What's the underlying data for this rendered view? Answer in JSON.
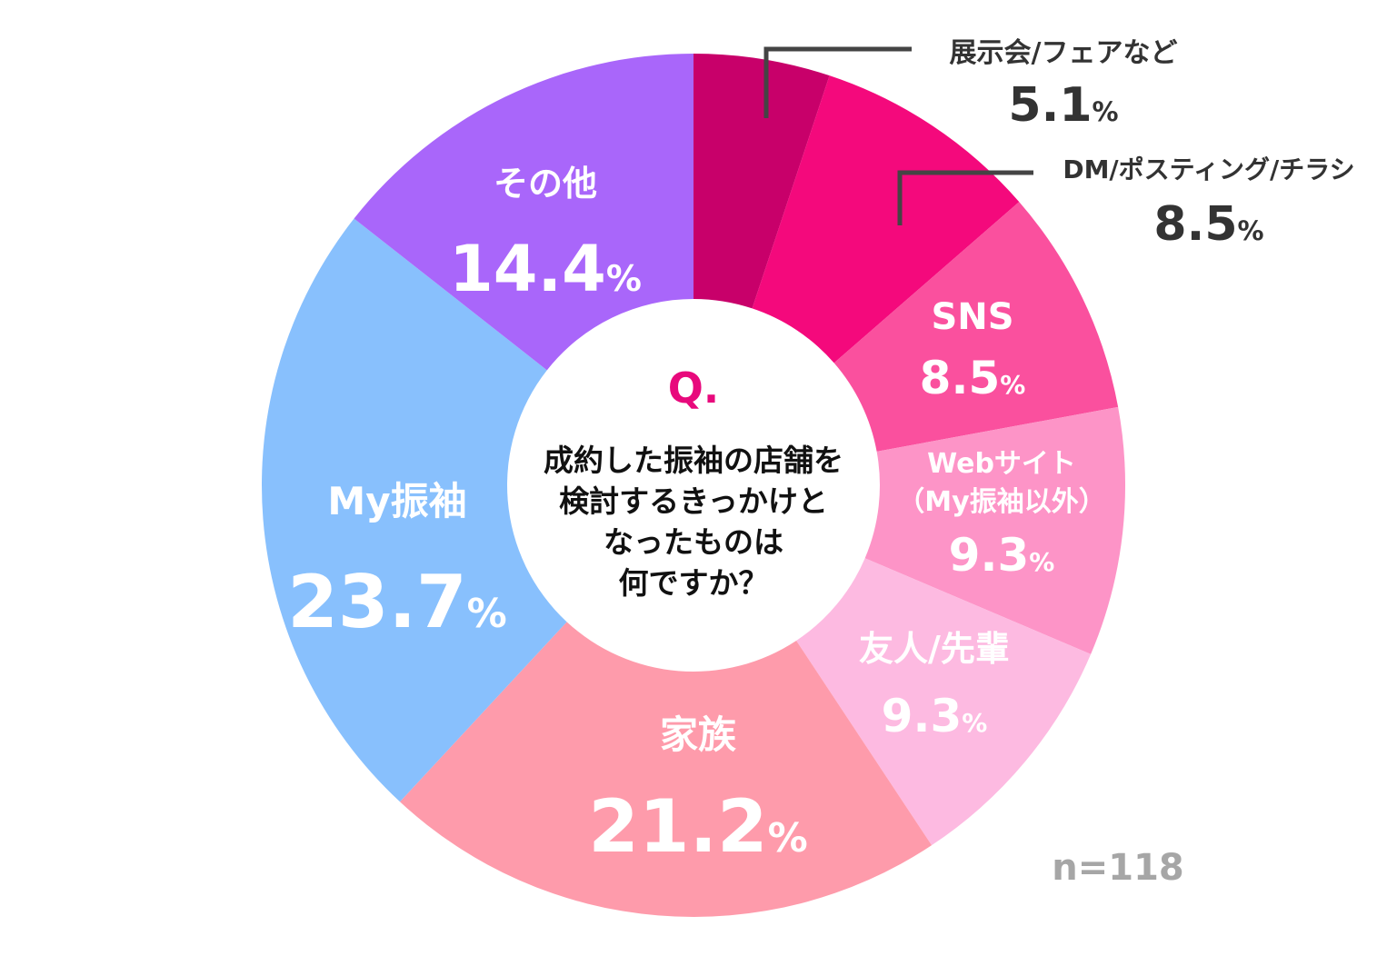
{
  "chart_data": {
    "type": "pie",
    "donut": true,
    "categories": [
      "展示会/フェアなど",
      "DM/ポスティング/チラシ",
      "SNS",
      "Webサイト（My振袖以外）",
      "友人/先輩",
      "家族",
      "My振袖",
      "その他"
    ],
    "slices": [
      {
        "label": "展示会/フェアなど",
        "display_lines": [
          "展示会/フェアなど"
        ],
        "value": 5.1,
        "display": "5.1",
        "unit": "%",
        "color": "#c8006a",
        "label_placement": "outside"
      },
      {
        "label": "DM/ポスティング/チラシ",
        "display_lines": [
          "DM/ポスティング/チラシ"
        ],
        "value": 8.5,
        "display": "8.5",
        "unit": "%",
        "color": "#f4097c",
        "label_placement": "outside"
      },
      {
        "label": "SNS",
        "display_lines": [
          "SNS"
        ],
        "value": 8.5,
        "display": "8.5",
        "unit": "%",
        "color": "#fa509e",
        "label_placement": "inside"
      },
      {
        "label": "Webサイト（My振袖以外）",
        "display_lines": [
          "Webサイト",
          "（My振袖以外）"
        ],
        "value": 9.3,
        "display": "9.3",
        "unit": "%",
        "color": "#fd94c7",
        "label_placement": "inside"
      },
      {
        "label": "友人/先輩",
        "display_lines": [
          "友人/先輩"
        ],
        "value": 9.3,
        "display": "9.3",
        "unit": "%",
        "color": "#fdbae1",
        "label_placement": "inside"
      },
      {
        "label": "家族",
        "display_lines": [
          "家族"
        ],
        "value": 21.2,
        "display": "21.2",
        "unit": "%",
        "color": "#fe9bab",
        "label_placement": "inside"
      },
      {
        "label": "My振袖",
        "display_lines": [
          "My振袖"
        ],
        "value": 23.7,
        "display": "23.7",
        "unit": "%",
        "color": "#88c0fd",
        "label_placement": "inside"
      },
      {
        "label": "その他",
        "display_lines": [
          "その他"
        ],
        "value": 14.4,
        "display": "14.4",
        "unit": "%",
        "color": "#a966fa",
        "label_placement": "inside"
      }
    ],
    "center": {
      "q_mark": "Q.",
      "question_lines": [
        "成約した振袖の店舗を",
        "検討するきっかけと",
        "なったものは",
        "何ですか？"
      ],
      "q_color": "#e8097c"
    },
    "sample_size": "n=118",
    "start": "12 o'clock",
    "direction": "clockwise"
  }
}
